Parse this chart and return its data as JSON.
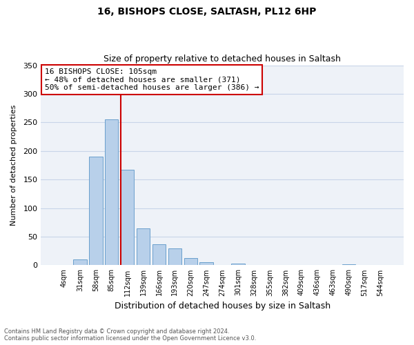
{
  "title1": "16, BISHOPS CLOSE, SALTASH, PL12 6HP",
  "title2": "Size of property relative to detached houses in Saltash",
  "xlabel": "Distribution of detached houses by size in Saltash",
  "ylabel": "Number of detached properties",
  "bar_labels": [
    "4sqm",
    "31sqm",
    "58sqm",
    "85sqm",
    "112sqm",
    "139sqm",
    "166sqm",
    "193sqm",
    "220sqm",
    "247sqm",
    "274sqm",
    "301sqm",
    "328sqm",
    "355sqm",
    "382sqm",
    "409sqm",
    "436sqm",
    "463sqm",
    "490sqm",
    "517sqm",
    "544sqm"
  ],
  "bar_values": [
    0,
    10,
    190,
    255,
    167,
    65,
    37,
    29,
    13,
    5,
    0,
    3,
    0,
    0,
    0,
    0,
    0,
    0,
    2,
    0,
    0
  ],
  "bar_color": "#b8d0ea",
  "bar_edge_color": "#6aa0cc",
  "vline_color": "#cc0000",
  "vline_x_index": 4,
  "ylim": [
    0,
    350
  ],
  "yticks": [
    0,
    50,
    100,
    150,
    200,
    250,
    300,
    350
  ],
  "annotation_title": "16 BISHOPS CLOSE: 105sqm",
  "annotation_line1": "← 48% of detached houses are smaller (371)",
  "annotation_line2": "50% of semi-detached houses are larger (386) →",
  "annotation_box_color": "#cc0000",
  "footer1": "Contains HM Land Registry data © Crown copyright and database right 2024.",
  "footer2": "Contains public sector information licensed under the Open Government Licence v3.0.",
  "background_color": "#eef2f8",
  "grid_color": "#c8d4e8"
}
